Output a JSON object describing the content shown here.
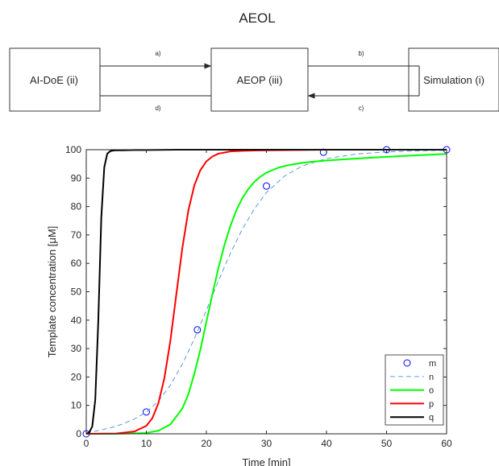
{
  "diagram": {
    "title": "AEOL",
    "blocks": {
      "left": "AI-DoE (ii)",
      "center": "AEOP (iii)",
      "right": "Simulation (i)"
    },
    "arrows": {
      "a": "a)",
      "b": "b)",
      "c": "c)",
      "d": "d)"
    }
  },
  "chart_data": {
    "type": "line",
    "title": "",
    "xlabel": "Time [min]",
    "ylabel": "Template concentration [μM]",
    "xlim": [
      0,
      60
    ],
    "ylim": [
      0,
      100
    ],
    "xticks": [
      0,
      10,
      20,
      30,
      40,
      50,
      60
    ],
    "yticks": [
      0,
      10,
      20,
      30,
      40,
      50,
      60,
      70,
      80,
      90,
      100
    ],
    "grid": false,
    "legend_position": "bottom-right",
    "series": [
      {
        "name": "m",
        "style": "markers",
        "marker": "circle",
        "color": "#0000ff",
        "x": [
          0,
          10,
          18.5,
          30,
          39.5,
          50,
          60
        ],
        "y": [
          0,
          7.7,
          36.6,
          87.2,
          99.1,
          100,
          100
        ]
      },
      {
        "name": "n",
        "style": "dashed",
        "color": "#4a90d9",
        "x": [
          0,
          2,
          4,
          6,
          8,
          10,
          12,
          14,
          16,
          18,
          20,
          22,
          24,
          26,
          28,
          30,
          33,
          36,
          40,
          45,
          50,
          55,
          60
        ],
        "y": [
          0.3,
          1.1,
          2.1,
          3.4,
          5.2,
          7.6,
          11.5,
          17.1,
          24.5,
          33.5,
          43.5,
          53.8,
          63.5,
          72.1,
          79.2,
          84.9,
          90.7,
          94.3,
          96.9,
          98.5,
          99.2,
          99.6,
          99.8
        ]
      },
      {
        "name": "o",
        "style": "solid",
        "color": "#00ff00",
        "x": [
          0,
          5,
          10,
          12,
          14,
          16,
          17,
          18,
          19,
          20,
          21,
          22,
          23,
          24,
          25,
          26,
          27,
          28,
          29,
          30,
          32,
          34,
          36,
          40,
          45,
          50,
          55,
          60
        ],
        "y": [
          0,
          0,
          0.3,
          1.1,
          3.3,
          8.9,
          13.9,
          21.2,
          29.6,
          39.4,
          49.1,
          58.3,
          66.4,
          73.2,
          78.7,
          83.0,
          86.2,
          88.7,
          90.5,
          91.9,
          93.7,
          94.7,
          95.4,
          96.2,
          96.9,
          97.5,
          98.0,
          98.5
        ]
      },
      {
        "name": "p",
        "style": "solid",
        "color": "#ff0000",
        "x": [
          0,
          5,
          8,
          10,
          11,
          12,
          13,
          14,
          15,
          16,
          17,
          18,
          19,
          20,
          21,
          22,
          24,
          26,
          28,
          30,
          35,
          40,
          50,
          60
        ],
        "y": [
          0,
          0.1,
          0.8,
          2.8,
          5.5,
          10.7,
          19.5,
          32.7,
          49.1,
          65.4,
          78.6,
          87.5,
          92.8,
          95.9,
          97.6,
          98.6,
          99.4,
          99.6,
          99.7,
          99.8,
          99.9,
          100,
          100,
          100
        ]
      },
      {
        "name": "q",
        "style": "solid",
        "color": "#000000",
        "x": [
          0,
          0.5,
          1,
          1.5,
          2,
          2.5,
          3,
          3.5,
          4,
          4.5,
          5,
          6,
          8,
          10,
          15,
          20,
          30,
          40,
          50,
          60
        ],
        "y": [
          0,
          0.5,
          2.6,
          12,
          39.5,
          76,
          93.8,
          98.6,
          99.5,
          99.7,
          99.8,
          99.8,
          99.9,
          99.9,
          100,
          100,
          100,
          100,
          100,
          100
        ]
      }
    ]
  }
}
